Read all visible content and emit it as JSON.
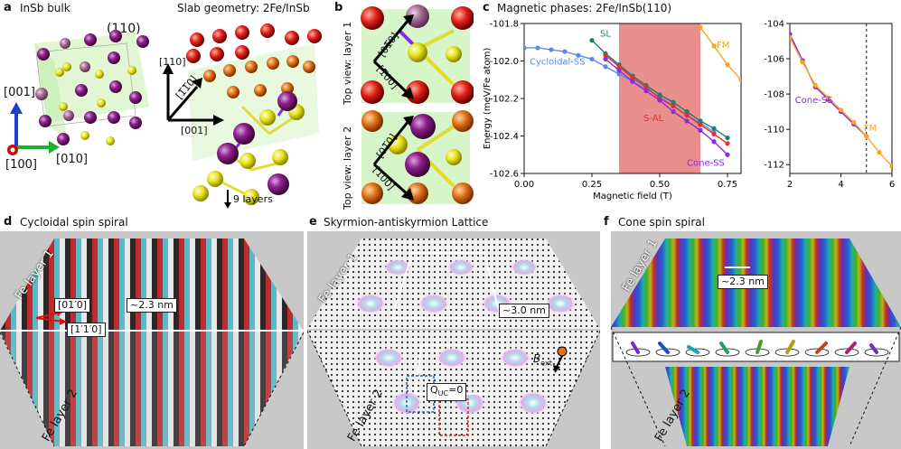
{
  "panels": {
    "a": {
      "label": "a",
      "title1": "InSb bulk",
      "title2": "Slab geometry: 2Fe/InSb",
      "miller": "(110)",
      "axes": {
        "z": "[001]",
        "y": "[010]",
        "x": "[100]"
      },
      "slab_axes": {
        "up": "[110]",
        "diag": "[1̅1̅0]",
        "right": "[001]"
      },
      "layers_note": "9 layers"
    },
    "b": {
      "label": "b",
      "top_view_1": "Top view: layer 1",
      "top_view_2": "Top view: layer 2",
      "dirA": "[01̅0]",
      "dirB": "[1̅00]"
    },
    "c": {
      "label": "c",
      "title": "Magnetic phases: 2Fe/InSb(110)"
    },
    "d": {
      "label": "d",
      "title": "Cycloidal spin spiral",
      "layer1": "Fe layer 1",
      "layer2": "Fe layer 2",
      "dir1": "[01′0]",
      "dir2": "[1′1′0]",
      "period": "~2.3 nm"
    },
    "e": {
      "label": "e",
      "title": "Skyrmion-antiskyrmion Lattice",
      "layer1": "Fe layer 1",
      "layer2": "Fe layer 2",
      "period": "~3.0 nm",
      "qcharge_main": "Q",
      "qcharge_sub": "UC",
      "qcharge_val": "=0",
      "field_main": "B",
      "field_sub": "ext"
    },
    "f": {
      "label": "f",
      "title": "Cone spin spiral",
      "layer1": "Fe layer 1",
      "layer2": "Fe layer 2",
      "period": "~2.3 nm"
    }
  },
  "colors": {
    "sl": "#1a7f6e",
    "cyc": "#5b8be6",
    "sal": "#e03030",
    "cone": "#8a2be2",
    "fm": "#f5a623",
    "shade": "#e87a7a"
  },
  "chart_data": [
    {
      "type": "line",
      "title": "Magnetic phases: 2Fe/InSb(110)",
      "xlabel": "Magnetic field (T)",
      "ylabel": "Energy (meV/Fe atom)",
      "xlim": [
        0.0,
        0.8
      ],
      "ylim": [
        -102.6,
        -101.8
      ],
      "xticks": [
        0.0,
        0.25,
        0.5,
        0.75
      ],
      "xtick_labels": [
        "0.00",
        "0.25",
        "0.50",
        "0.75"
      ],
      "yticks": [
        -102.6,
        -102.4,
        -102.2,
        -102.0,
        -101.8
      ],
      "ytick_labels": [
        "-102.6",
        "-102.4",
        "-102.2",
        "-102.0",
        "-101.8"
      ],
      "shaded_region": [
        0.35,
        0.65
      ],
      "series": [
        {
          "name": "Cycloidal-SS",
          "label": "Cycloidal-SS",
          "color": "#5b8be6",
          "x": [
            0.0,
            0.05,
            0.1,
            0.15,
            0.2,
            0.25,
            0.3,
            0.35,
            0.4,
            0.45,
            0.5,
            0.55,
            0.6,
            0.65,
            0.7
          ],
          "y": [
            -101.93,
            -101.93,
            -101.94,
            -101.95,
            -101.97,
            -101.99,
            -102.03,
            -102.07,
            -102.11,
            -102.15,
            -102.19,
            -102.24,
            -102.29,
            -102.33,
            -102.38
          ]
        },
        {
          "name": "SL",
          "label": "SL",
          "color": "#1a7f6e",
          "x": [
            0.25,
            0.3,
            0.35,
            0.4,
            0.45,
            0.5,
            0.55,
            0.6,
            0.65,
            0.7,
            0.75
          ],
          "y": [
            -101.89,
            -101.96,
            -102.02,
            -102.08,
            -102.13,
            -102.18,
            -102.22,
            -102.27,
            -102.32,
            -102.36,
            -102.41
          ]
        },
        {
          "name": "S-AL",
          "label": "S-AL",
          "color": "#e03030",
          "x": [
            0.3,
            0.35,
            0.4,
            0.45,
            0.5,
            0.55,
            0.6,
            0.65,
            0.7,
            0.75
          ],
          "y": [
            -101.97,
            -102.03,
            -102.09,
            -102.14,
            -102.2,
            -102.24,
            -102.29,
            -102.34,
            -102.39,
            -102.44
          ]
        },
        {
          "name": "Cone-SS",
          "label": "Cone-SS",
          "color": "#8a2be2",
          "x": [
            0.3,
            0.35,
            0.4,
            0.45,
            0.5,
            0.55,
            0.6,
            0.65,
            0.7,
            0.75
          ],
          "y": [
            -101.99,
            -102.05,
            -102.11,
            -102.16,
            -102.21,
            -102.27,
            -102.32,
            -102.37,
            -102.43,
            -102.5
          ]
        },
        {
          "name": "FM",
          "label": "FM",
          "color": "#f5a623",
          "x": [
            0.65,
            0.7,
            0.75,
            0.8
          ],
          "y": [
            -101.82,
            -101.92,
            -102.02,
            -102.1
          ]
        }
      ]
    },
    {
      "type": "line",
      "xlabel": "",
      "ylabel": "",
      "xlim": [
        2,
        6
      ],
      "ylim": [
        -112.5,
        -104
      ],
      "xticks": [
        2,
        4,
        6
      ],
      "xtick_labels": [
        "2",
        "4",
        "6"
      ],
      "yticks": [
        -112,
        -110,
        -108,
        -106,
        -104
      ],
      "ytick_labels": [
        "-112",
        "-110",
        "-108",
        "-106",
        "-104"
      ],
      "vline": 5.0,
      "series": [
        {
          "name": "Cone-SS",
          "label": "Cone-SS",
          "color": "#8a2be2",
          "x": [
            2.0,
            2.5,
            3.0,
            3.5,
            4.0,
            4.5,
            5.0
          ],
          "y": [
            -104.6,
            -106.1,
            -107.6,
            -108.3,
            -109.0,
            -109.7,
            -110.4
          ]
        },
        {
          "name": "FM",
          "label": "FM",
          "color": "#f5a623",
          "x": [
            2.0,
            2.5,
            3.0,
            3.5,
            4.0,
            4.5,
            5.0,
            5.5,
            6.0
          ],
          "y": [
            -104.8,
            -106.2,
            -107.5,
            -108.2,
            -108.9,
            -109.6,
            -110.4,
            -111.3,
            -112.1
          ]
        }
      ]
    }
  ]
}
